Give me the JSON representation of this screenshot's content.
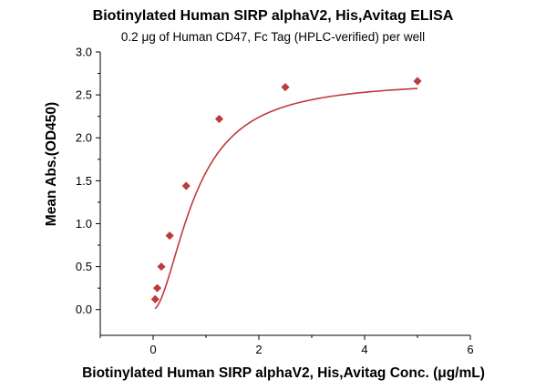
{
  "chart_data": {
    "type": "scatter",
    "title": "Biotinylated Human SIRP alphaV2, His,Avitag ELISA",
    "subtitle": "0.2 μg of Human CD47, Fc Tag (HPLC-verified) per well",
    "xlabel": "Biotinylated Human SIRP alphaV2, His,Avitag Conc. (μg/mL)",
    "ylabel": "Mean Abs.(OD450)",
    "xlim": [
      -1,
      6
    ],
    "ylim": [
      -0.3,
      3.0
    ],
    "x_ticks": [
      "0",
      "2",
      "4",
      "6"
    ],
    "y_ticks": [
      "0.0",
      "0.5",
      "1.0",
      "1.5",
      "2.0",
      "2.5",
      "3.0"
    ],
    "grid": false,
    "series": [
      {
        "points": [
          {
            "x": 0.039,
            "y": 0.12
          },
          {
            "x": 0.078,
            "y": 0.25
          },
          {
            "x": 0.156,
            "y": 0.5
          },
          {
            "x": 0.313,
            "y": 0.86
          },
          {
            "x": 0.625,
            "y": 1.44
          },
          {
            "x": 1.25,
            "y": 2.22
          },
          {
            "x": 2.5,
            "y": 2.59
          },
          {
            "x": 5.0,
            "y": 2.66
          }
        ],
        "fit": {
          "type": "four-parameter logistic",
          "bottom": 0.0,
          "top": 2.67,
          "ec50": 0.8,
          "hill": 1.8
        }
      }
    ],
    "colors": {
      "series": "#c0393b",
      "axis": "#000000"
    }
  }
}
